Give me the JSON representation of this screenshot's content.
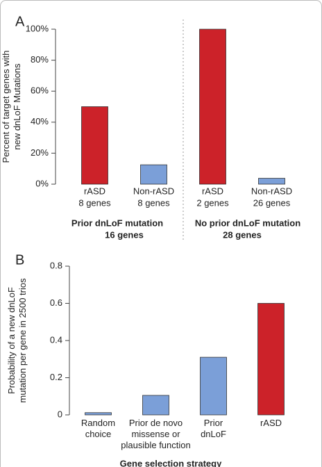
{
  "chart_data": [
    {
      "type": "bar",
      "panel": "A",
      "ylabel": [
        "Percent of target genes with",
        "new dnLoF Mutations"
      ],
      "categories": [
        "rASD",
        "Non-rASD",
        "rASD",
        "Non-rASD"
      ],
      "category_details": [
        "8 genes",
        "8 genes",
        "2 genes",
        "26 genes"
      ],
      "groups": [
        {
          "label": "Prior dnLoF mutation",
          "detail": "16 genes"
        },
        {
          "label": "No prior dnLoF mutation",
          "detail": "28 genes"
        }
      ],
      "values": [
        50,
        12.5,
        100,
        3.8
      ],
      "colors": [
        "#cc2229",
        "#7b9fd8",
        "#cc2229",
        "#7b9fd8"
      ],
      "ylim": [
        0,
        100
      ],
      "yticks": [
        {
          "value": 0,
          "label": "0%"
        },
        {
          "value": 20,
          "label": "20%"
        },
        {
          "value": 40,
          "label": "40%"
        },
        {
          "value": 60,
          "label": "60%"
        },
        {
          "value": 80,
          "label": "80%"
        },
        {
          "value": 100,
          "label": "100%"
        }
      ]
    },
    {
      "type": "bar",
      "panel": "B",
      "ylabel": [
        "Probability of a new dnLoF",
        "mutation per gene in 2500 trios"
      ],
      "xlabel": "Gene selection strategy",
      "categories": [
        [
          "Random",
          "choice"
        ],
        [
          "Prior de novo",
          "missense or",
          "plausible function"
        ],
        [
          "Prior",
          "dnLoF"
        ],
        [
          "rASD"
        ]
      ],
      "values": [
        0.012,
        0.105,
        0.31,
        0.6
      ],
      "colors": [
        "#7b9fd8",
        "#7b9fd8",
        "#7b9fd8",
        "#cc2229"
      ],
      "ylim": [
        0,
        0.8
      ],
      "yticks": [
        0,
        0.2,
        0.4,
        0.6,
        0.8
      ]
    }
  ]
}
